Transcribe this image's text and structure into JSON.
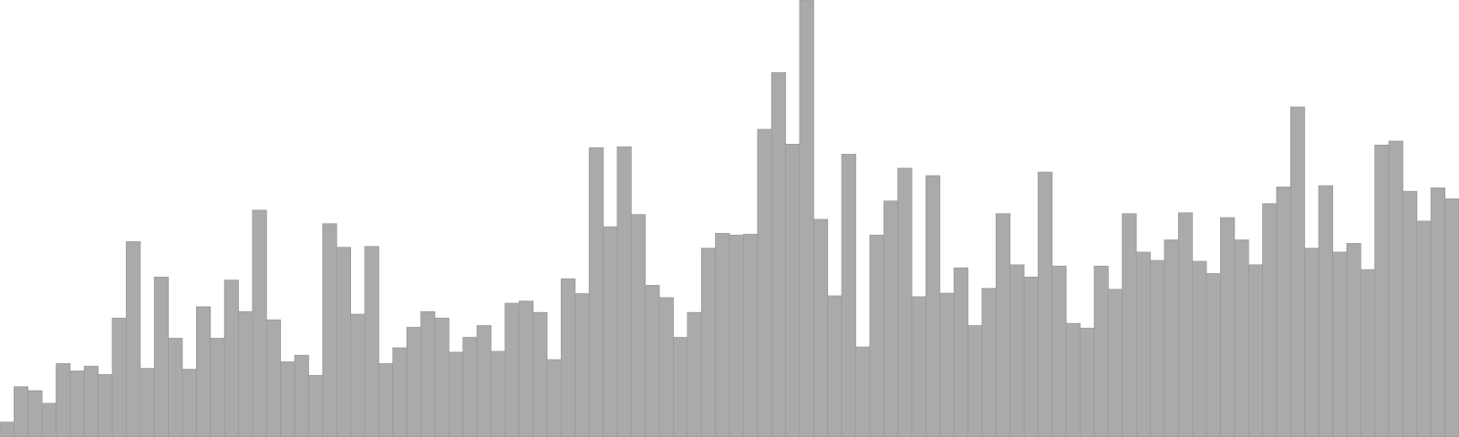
{
  "chart_data": {
    "type": "bar",
    "title": "",
    "xlabel": "",
    "ylabel": "",
    "ylim": [
      0,
      100
    ],
    "grid": false,
    "legend": "none",
    "colors": {
      "bar_fill": "#aaaaaa",
      "bar_edge": "#999999",
      "background": "#ffffff"
    },
    "values": [
      3.4,
      11.5,
      10.6,
      7.7,
      16.8,
      15.1,
      16.2,
      14.3,
      27.2,
      44.7,
      15.7,
      36.6,
      22.6,
      15.5,
      29.8,
      22.6,
      35.9,
      28.7,
      51.9,
      26.8,
      17.2,
      18.7,
      14.1,
      48.8,
      43.4,
      28.1,
      43.6,
      16.8,
      20.4,
      25.1,
      28.7,
      27.2,
      19.4,
      22.8,
      25.5,
      19.6,
      30.6,
      31.1,
      28.5,
      17.7,
      36.2,
      32.8,
      66.2,
      48.1,
      66.4,
      50.9,
      34.7,
      31.9,
      22.8,
      28.5,
      43.2,
      46.6,
      46.2,
      46.4,
      70.4,
      83.4,
      67.0,
      100.0,
      49.8,
      32.3,
      64.7,
      20.6,
      46.2,
      54.0,
      61.5,
      32.1,
      59.8,
      32.9,
      38.7,
      25.5,
      34.0,
      51.1,
      39.4,
      36.6,
      60.6,
      39.1,
      26.0,
      24.9,
      39.1,
      33.8,
      51.1,
      42.3,
      40.4,
      45.1,
      51.3,
      40.2,
      37.4,
      50.2,
      45.1,
      39.4,
      53.4,
      57.2,
      75.5,
      43.2,
      57.5,
      42.3,
      44.3,
      38.3,
      66.8,
      67.7,
      56.2,
      49.4,
      57.0,
      54.5
    ]
  }
}
